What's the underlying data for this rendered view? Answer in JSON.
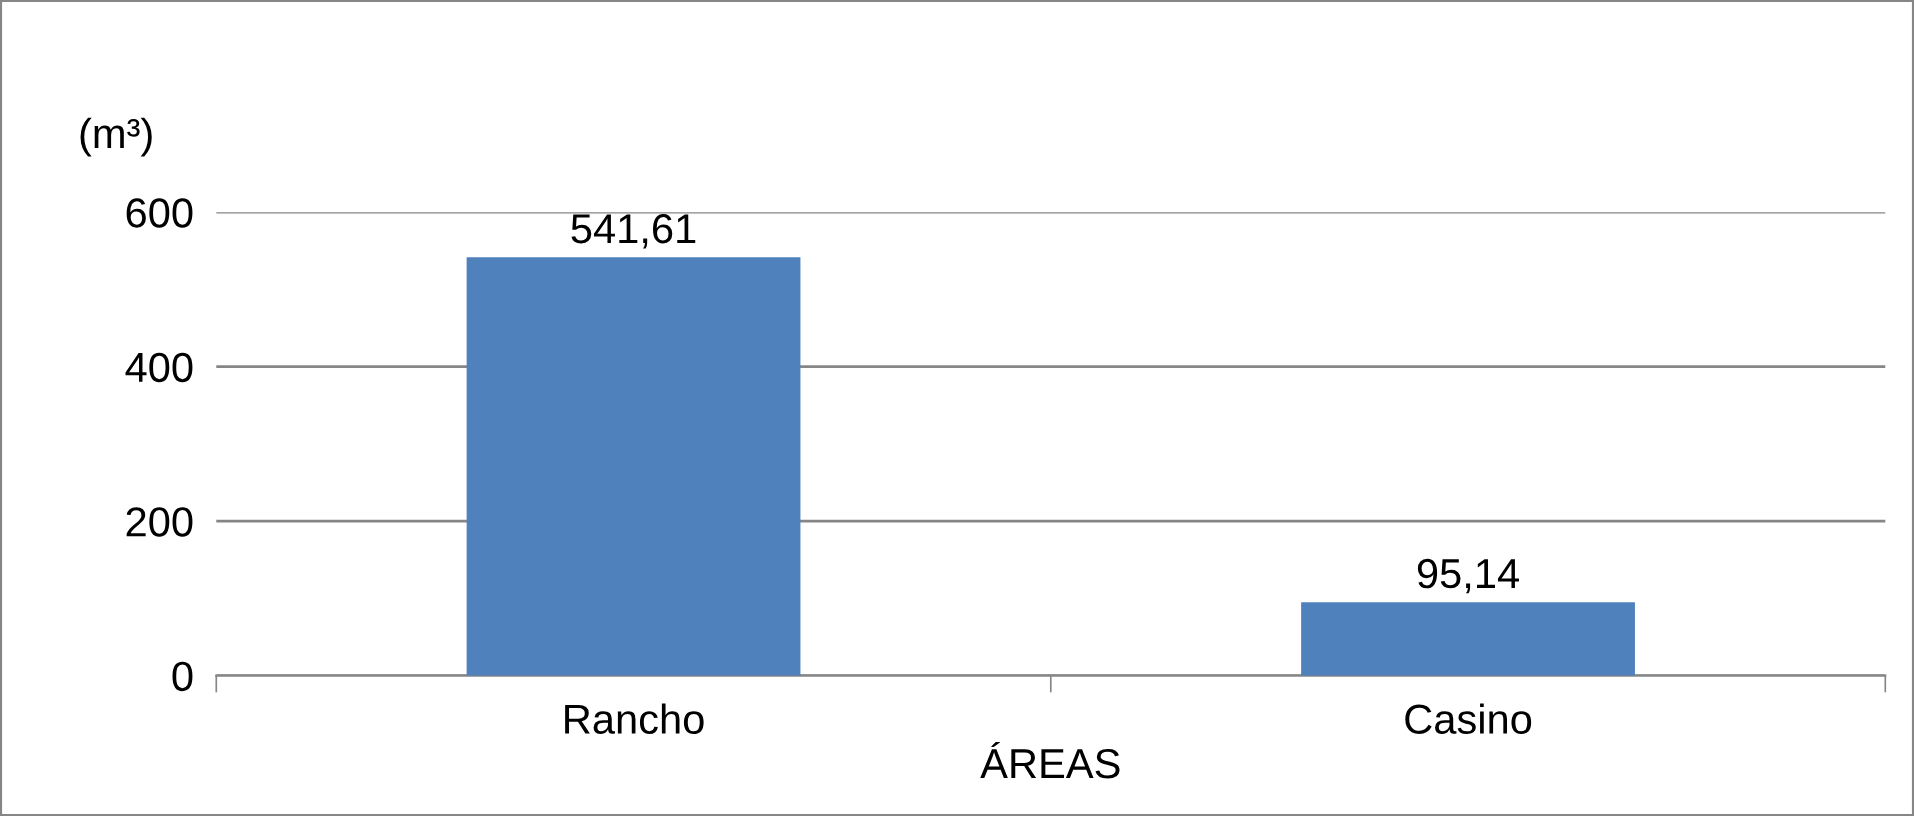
{
  "chart_data": {
    "type": "bar",
    "categories": [
      "Rancho",
      "Casino"
    ],
    "values": [
      541.61,
      95.14
    ],
    "value_labels": [
      "541,61",
      "95,14"
    ],
    "color": "#4f81bd",
    "xlabel": "ÁREAS",
    "ylabel": "(m³)",
    "ylim": [
      0,
      600
    ],
    "yticks": [
      0,
      200,
      400,
      600
    ],
    "grid": "y"
  }
}
